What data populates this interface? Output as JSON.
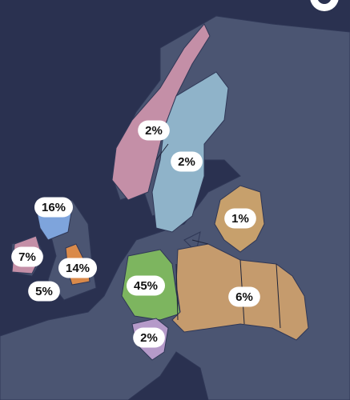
{
  "map": {
    "labels": [
      "2%",
      "2%",
      "1%",
      "16%",
      "7%",
      "14%",
      "5%",
      "45%",
      "6%",
      "2%"
    ]
  }
}
